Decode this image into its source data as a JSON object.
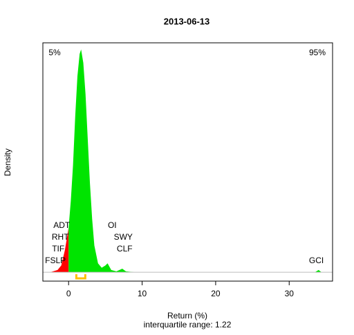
{
  "chart_data": {
    "type": "density",
    "title": "2013-06-13",
    "x_label": "Return (%)",
    "y_label": "Density",
    "subtitle": "interquartile range: 1.22",
    "left_tail_label": "5%",
    "right_tail_label": "95%",
    "left_color": "#ff0000",
    "right_color": "#00e400",
    "tail_text_color": "#008000",
    "split": 0,
    "quartiles": [
      1.05,
      2.27
    ],
    "quartile_color": "#ffc000",
    "x": [
      -2.5,
      -1.5,
      -1,
      -0.5,
      0,
      0.3,
      0.6,
      0.9,
      1.2,
      1.5,
      1.7,
      2.0,
      2.3,
      2.6,
      2.9,
      3.2,
      3.5,
      4.0,
      4.5,
      5.0,
      5.3,
      5.8,
      6.5,
      7.3,
      7.8,
      9,
      15,
      25,
      33.5,
      34,
      34.4
    ],
    "values": [
      0,
      0.005,
      0.015,
      0.05,
      0.1,
      0.16,
      0.24,
      0.35,
      0.44,
      0.49,
      0.5,
      0.47,
      0.4,
      0.3,
      0.2,
      0.12,
      0.06,
      0.02,
      0.01,
      0.015,
      0.02,
      0.005,
      0.002,
      0.008,
      0.002,
      0,
      0,
      0,
      0,
      0.005,
      0
    ],
    "labels": [
      {
        "text": "ADT",
        "x": -0.94
      },
      {
        "text": "RHT",
        "x": -1.13
      },
      {
        "text": "TIF",
        "x": -1.41
      },
      {
        "text": "FSLP",
        "x": -1.79
      },
      {
        "text": "OI",
        "x": 5.93
      },
      {
        "text": "SWY",
        "x": 7.43
      },
      {
        "text": "CLF",
        "x": 7.62
      },
      {
        "text": "GCI",
        "x": 33.7
      }
    ],
    "xlim": [
      -3.5,
      35.9
    ],
    "ylim": [
      -0.02,
      0.515
    ],
    "xticks": [
      0,
      10,
      20,
      30
    ]
  }
}
